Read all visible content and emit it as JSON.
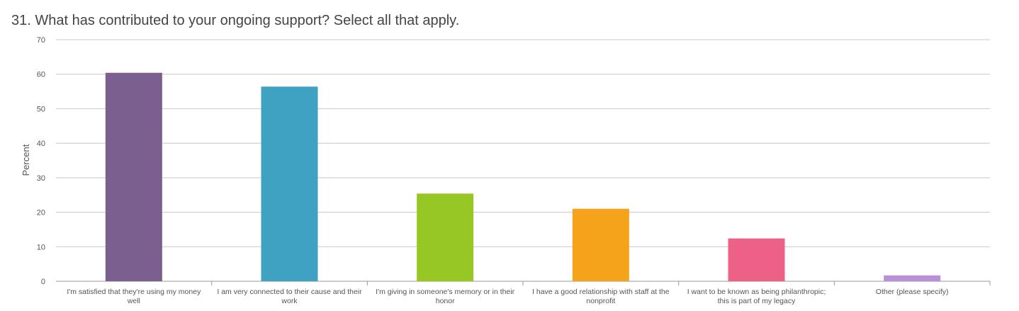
{
  "chart_data": {
    "type": "bar",
    "title": "31. What has contributed to your ongoing support? Select all that apply.",
    "xlabel": "",
    "ylabel": "Percent",
    "ylim": [
      0,
      70
    ],
    "yticks": [
      0,
      10,
      20,
      30,
      40,
      50,
      60,
      70
    ],
    "grid": true,
    "legend": "none",
    "categories": [
      [
        "I'm satisfied that they're using my money",
        "well"
      ],
      [
        "I am very connected to their cause and their",
        "work"
      ],
      [
        "I'm giving in someone's memory or in their",
        "honor"
      ],
      [
        "I have a good relationship with staff at the",
        "nonprofit"
      ],
      [
        "I want to be known as being philanthropic;",
        "this is part of my legacy"
      ],
      [
        "Other (please specify)"
      ]
    ],
    "values": [
      60.4,
      56.4,
      25.4,
      21.0,
      12.4,
      1.7
    ],
    "colors": [
      "#7b5f8f",
      "#3fa2c2",
      "#96c725",
      "#f4a31a",
      "#ee6186",
      "#b98fd8"
    ]
  }
}
